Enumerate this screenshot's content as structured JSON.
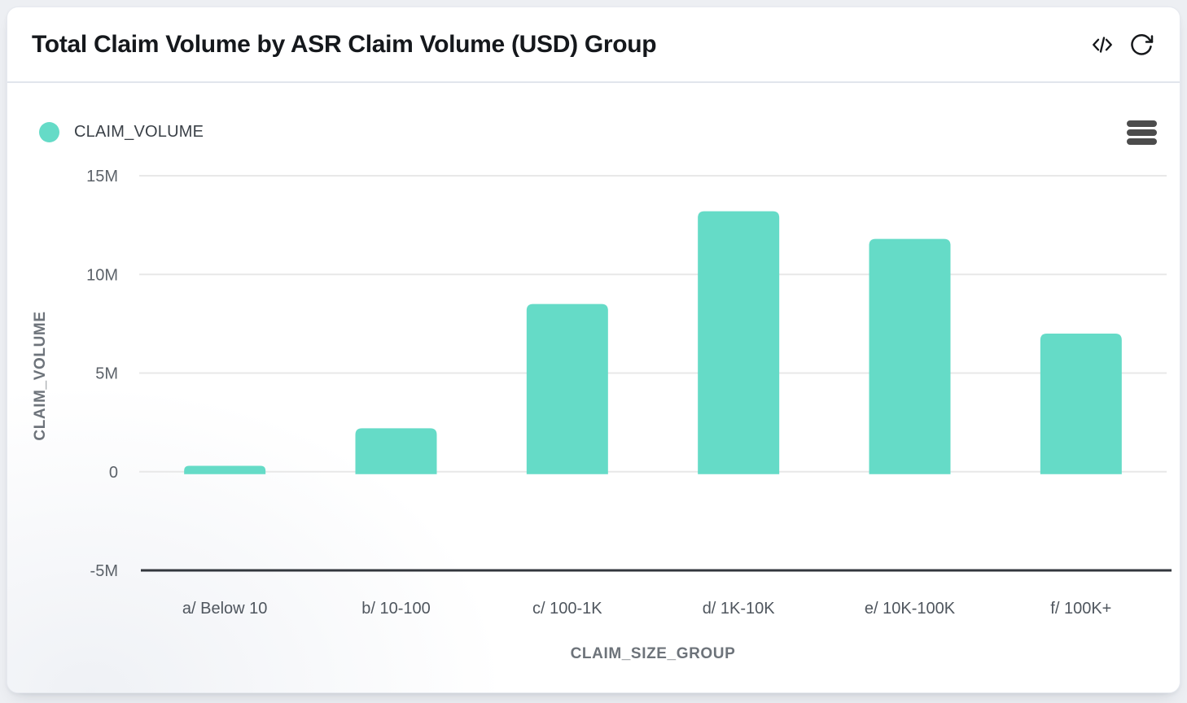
{
  "header": {
    "title": "Total Claim Volume by ASR Claim Volume (USD) Group",
    "icons": [
      {
        "name": "code-icon"
      },
      {
        "name": "refresh-icon"
      }
    ]
  },
  "legend": {
    "label": "CLAIM_VOLUME",
    "dot_color": "#65dbc7",
    "position": "top-left"
  },
  "export_menu": {
    "icon": "hamburger-icon"
  },
  "chart_data": {
    "type": "bar",
    "title": "Total Claim Volume by ASR Claim Volume (USD) Group",
    "categories": [
      "a/ Below 10",
      "b/ 10-100",
      "c/ 100-1K",
      "d/ 1K-10K",
      "e/ 10K-100K",
      "f/ 100K+"
    ],
    "series": [
      {
        "name": "CLAIM_VOLUME",
        "color": "#65dbc7",
        "values": [
          300000,
          2200000,
          8500000,
          13200000,
          11800000,
          7000000
        ]
      }
    ],
    "xlabel": "CLAIM_SIZE_GROUP",
    "ylabel": "CLAIM_VOLUME",
    "ylim": [
      -5000000,
      15000000
    ],
    "yticks": [
      {
        "value": 15000000,
        "label": "15M"
      },
      {
        "value": 10000000,
        "label": "10M"
      },
      {
        "value": 5000000,
        "label": "5M"
      },
      {
        "value": 0,
        "label": "0"
      },
      {
        "value": -5000000,
        "label": "-5M"
      }
    ],
    "grid": true,
    "legend_position": "top-left"
  },
  "colors": {
    "page_bg": "#edeff3",
    "card_bg": "#ffffff",
    "divider": "#e1e5ec",
    "title_text": "#15181c",
    "legend_text": "#3a4047",
    "ytick_text": "#5c6269",
    "xtick_text": "#4f565e",
    "axis_title_text": "#6d737a",
    "gridline": "#e8e8e8",
    "axis_line": "#33373d",
    "bar_fill": "#65dbc7",
    "icon": "#16181b",
    "menu_icon": "#4c4c4c"
  }
}
